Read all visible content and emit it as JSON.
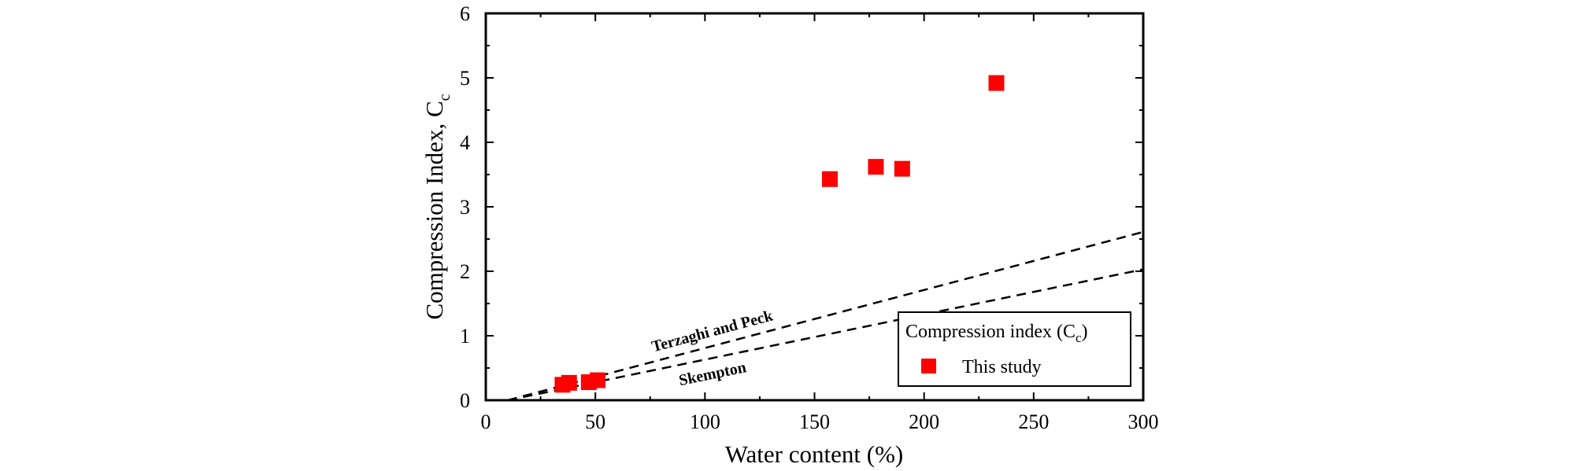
{
  "chart_data": {
    "type": "scatter",
    "xlabel": "Water content (%)",
    "ylabel": "Compression Index, C",
    "ylabel_subscript": "c",
    "xlim": [
      0,
      300
    ],
    "ylim": [
      0,
      6
    ],
    "xticks": [
      0,
      50,
      100,
      150,
      200,
      250,
      300
    ],
    "yticks": [
      0,
      1,
      2,
      3,
      4,
      5,
      6
    ],
    "grid": false,
    "legend": {
      "placement": "bottom-right",
      "title": "Compression index (C",
      "title_subscript": "c",
      "title_suffix": ")",
      "entry": "This study"
    },
    "series": [
      {
        "name": "This study",
        "color": "#ff0000",
        "marker": "square",
        "points": [
          {
            "x": 35,
            "y": 0.24
          },
          {
            "x": 38,
            "y": 0.27
          },
          {
            "x": 47,
            "y": 0.28
          },
          {
            "x": 51,
            "y": 0.31
          },
          {
            "x": 157,
            "y": 3.43
          },
          {
            "x": 178,
            "y": 3.62
          },
          {
            "x": 190,
            "y": 3.59
          },
          {
            "x": 233,
            "y": 4.92
          }
        ]
      }
    ],
    "reference_lines": [
      {
        "label": "Terzaghi and Peck",
        "x": [
          0,
          300
        ],
        "y": [
          -0.09,
          2.61
        ],
        "style": "dashed"
      },
      {
        "label": "Skempton",
        "x": [
          0,
          300
        ],
        "y": [
          -0.07,
          2.03
        ],
        "style": "dashed"
      }
    ]
  }
}
